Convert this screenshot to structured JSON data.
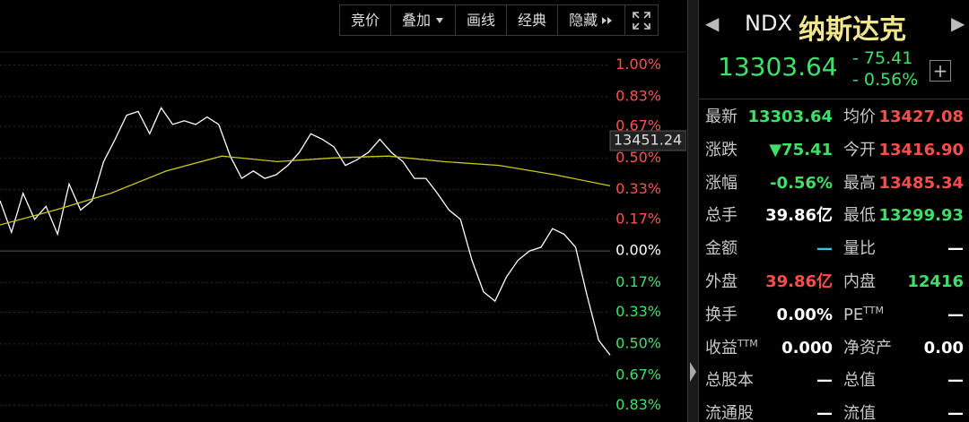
{
  "toolbar": {
    "buttons": [
      "竞价",
      "叠加",
      "画线",
      "经典",
      "隐藏"
    ]
  },
  "header": {
    "code": "NDX",
    "name": "纳斯达克",
    "price": "13303.64",
    "change": "- 75.41",
    "change_pct": "- 0.56%"
  },
  "chart_data": {
    "type": "line",
    "crosshair_label": "13451.24",
    "ylim": [
      -0.92,
      1.07
    ],
    "yticks": [
      {
        "value": 1.0,
        "label": "1.00%"
      },
      {
        "value": 0.83,
        "label": "0.83%"
      },
      {
        "value": 0.67,
        "label": "0.67%"
      },
      {
        "value": 0.5,
        "label": "0.50%"
      },
      {
        "value": 0.33,
        "label": "0.33%"
      },
      {
        "value": 0.17,
        "label": "0.17%"
      },
      {
        "value": 0,
        "label": "0.00%"
      },
      {
        "value": -0.17,
        "label": "0.17%"
      },
      {
        "value": -0.33,
        "label": "0.33%"
      },
      {
        "value": -0.5,
        "label": "0.50%"
      },
      {
        "value": -0.67,
        "label": "0.67%"
      },
      {
        "value": -0.83,
        "label": "0.83%"
      }
    ],
    "grid": true,
    "series": [
      {
        "color": "#ffffff",
        "values": [
          0.27,
          0.1,
          0.31,
          0.17,
          0.24,
          0.09,
          0.36,
          0.22,
          0.27,
          0.48,
          0.6,
          0.73,
          0.75,
          0.63,
          0.77,
          0.68,
          0.7,
          0.68,
          0.72,
          0.68,
          0.51,
          0.39,
          0.43,
          0.39,
          0.41,
          0.46,
          0.53,
          0.63,
          0.6,
          0.56,
          0.46,
          0.49,
          0.53,
          0.6,
          0.53,
          0.48,
          0.39,
          0.39,
          0.31,
          0.22,
          0.17,
          -0.05,
          -0.22,
          -0.27,
          -0.14,
          -0.05,
          0.0,
          0.02,
          0.12,
          0.09,
          0.02,
          -0.24,
          -0.48,
          -0.56
        ]
      },
      {
        "color": "#c8c81e",
        "values": [
          0.14,
          0.22,
          0.31,
          0.43,
          0.51,
          0.48,
          0.5,
          0.51,
          0.48,
          0.46,
          0.41,
          0.35
        ]
      }
    ]
  },
  "stats": {
    "rows": [
      [
        {
          "label": "最新",
          "value": "13303.64",
          "color": "#3ee06a"
        },
        {
          "label": "均价",
          "value": "13427.08",
          "color": "#ff4d4d"
        }
      ],
      [
        {
          "label": "涨跌",
          "value": "▼75.41",
          "color": "#3ee06a"
        },
        {
          "label": "今开",
          "value": "13416.90",
          "color": "#ff4d4d"
        }
      ],
      [
        {
          "label": "涨幅",
          "value": "-0.56%",
          "color": "#3ee06a"
        },
        {
          "label": "最高",
          "value": "13485.34",
          "color": "#ff4d4d"
        }
      ],
      [
        {
          "label": "总手",
          "value": "39.86亿",
          "color": "#ffffff"
        },
        {
          "label": "最低",
          "value": "13299.93",
          "color": "#3ee06a"
        }
      ],
      [
        {
          "label": "金额",
          "value": "—",
          "color": "#2ec8e0"
        },
        {
          "label": "量比",
          "value": "—",
          "color": "#ffffff"
        }
      ],
      [
        {
          "label": "外盘",
          "value": "39.86亿",
          "color": "#ff4d4d"
        },
        {
          "label": "内盘",
          "value": "12416",
          "color": "#3ee06a"
        }
      ],
      [
        {
          "label": "换手",
          "value": "0.00%",
          "color": "#ffffff"
        },
        {
          "label": "PE",
          "label_sup": "TTM",
          "value": "—",
          "color": "#ffffff"
        }
      ],
      [
        {
          "label": "收益",
          "label_sup": "TTM",
          "value": "0.000",
          "color": "#ffffff"
        },
        {
          "label": "净资产",
          "value": "0.00",
          "color": "#ffffff"
        }
      ],
      [
        {
          "label": "总股本",
          "value": "—",
          "color": "#ffffff"
        },
        {
          "label": "总值",
          "value": "—",
          "color": "#ffffff"
        }
      ],
      [
        {
          "label": "流通股",
          "value": "—",
          "color": "#ffffff"
        },
        {
          "label": "流值",
          "value": "—",
          "color": "#ffffff"
        }
      ]
    ]
  }
}
